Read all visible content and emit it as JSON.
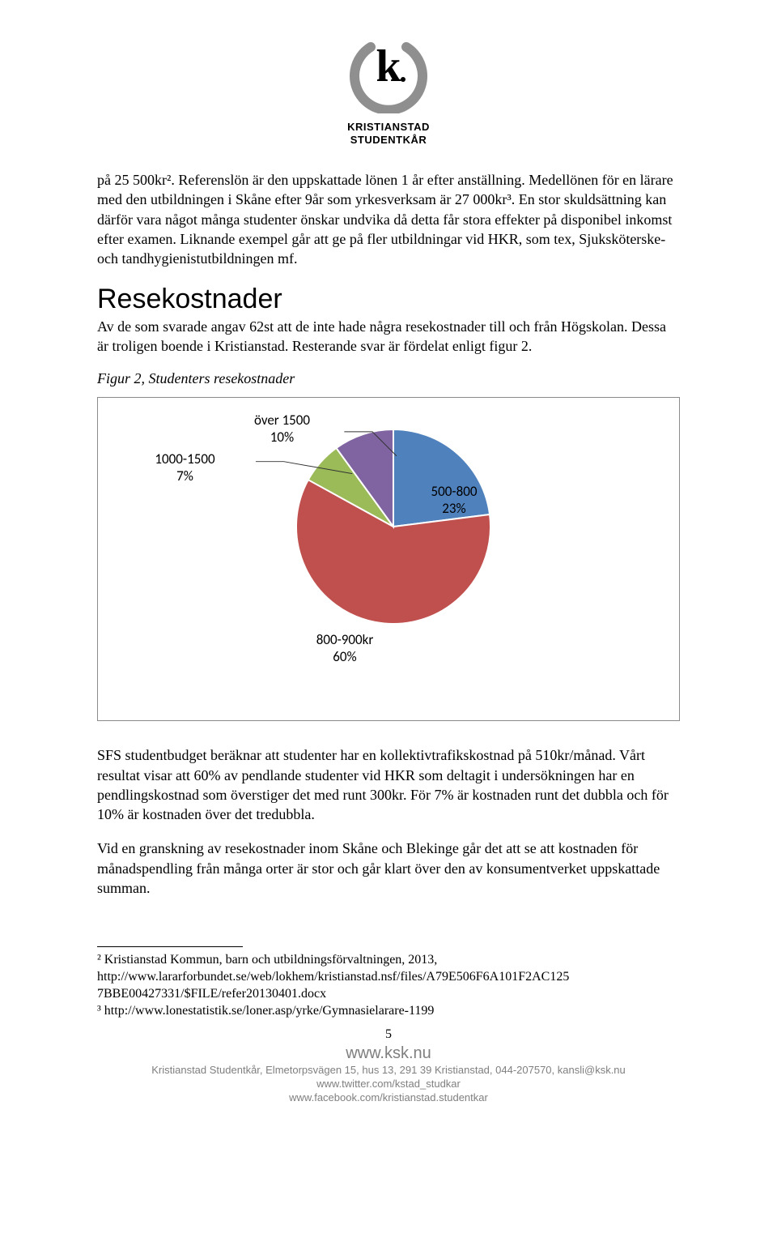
{
  "logo": {
    "line1": "KRISTIANSTAD",
    "line2": "STUDENTKÅR",
    "arc_color": "#8f8f8f",
    "letter_color": "#000000"
  },
  "para1": "på 25 500kr². Referenslön är den uppskattade lönen 1 år efter anställning. Medellönen för en lärare med den utbildningen i Skåne efter 9år som yrkesverksam är 27 000kr³. En stor skuldsättning kan därför vara något många studenter önskar undvika då detta får stora effekter på disponibel inkomst efter examen. Liknande exempel går att ge på fler utbildningar vid HKR, som tex, Sjuksköterske- och tandhygienistutbildningen mf.",
  "heading": "Resekostnader",
  "para2": "Av de som svarade angav 62st att de inte hade några resekostnader till och från Högskolan. Dessa är troligen boende i Kristianstad. Resterande svar är fördelat enligt figur 2.",
  "fig_caption": "Figur 2, Studenters resekostnader",
  "chart": {
    "type": "pie",
    "slices": [
      {
        "label": "500-800",
        "value": 23,
        "color": "#4f81bd",
        "has_leader": false
      },
      {
        "label": "800-900kr",
        "value": 60,
        "color": "#c0504d",
        "has_leader": false
      },
      {
        "label": "1000-1500",
        "value": 7,
        "color": "#9bbb59",
        "has_leader": true
      },
      {
        "label": "över 1500",
        "value": 10,
        "color": "#8064a2",
        "has_leader": true
      }
    ],
    "background_color": "#ffffff",
    "border_color": "#8a8a8a",
    "slice_border_color": "#ffffff",
    "slice_border_width": 2,
    "label_fontsize": 17,
    "label_font": "Calibri, Arial, sans-serif"
  },
  "para3": "SFS studentbudget beräknar att studenter har en kollektivtrafikskostnad på 510kr/månad. Vårt resultat visar att 60% av pendlande studenter vid HKR som deltagit i undersökningen har en pendlingskostnad som överstiger det med runt 300kr. För 7% är kostnaden runt det dubbla och för 10% är kostnaden över det tredubbla.",
  "para4": "Vid en granskning av resekostnader inom Skåne och Blekinge går det att se att kostnaden för månadspendling från många orter är stor och går klart över den av konsumentverket uppskattade summan.",
  "footnotes": {
    "fn2_a": "² Kristianstad Kommun, barn och utbildningsförvaltningen, 2013,",
    "fn2_b": "http://www.lararforbundet.se/web/lokhem/kristianstad.nsf/files/A79E506F6A101F2AC125",
    "fn2_c": "7BBE00427331/$FILE/refer20130401.docx",
    "fn3": "³ http://www.lonestatistik.se/loner.asp/yrke/Gymnasielarare-1199"
  },
  "footer": {
    "page_num": "5",
    "site": "www.ksk.nu",
    "line1": "Kristianstad Studentkår, Elmetorpsvägen 15, hus 13, 291 39 Kristianstad, 044-207570, kansli@ksk.nu",
    "line2": "www.twitter.com/kstad_studkar",
    "line3": "www.facebook.com/kristianstad.studentkar"
  }
}
